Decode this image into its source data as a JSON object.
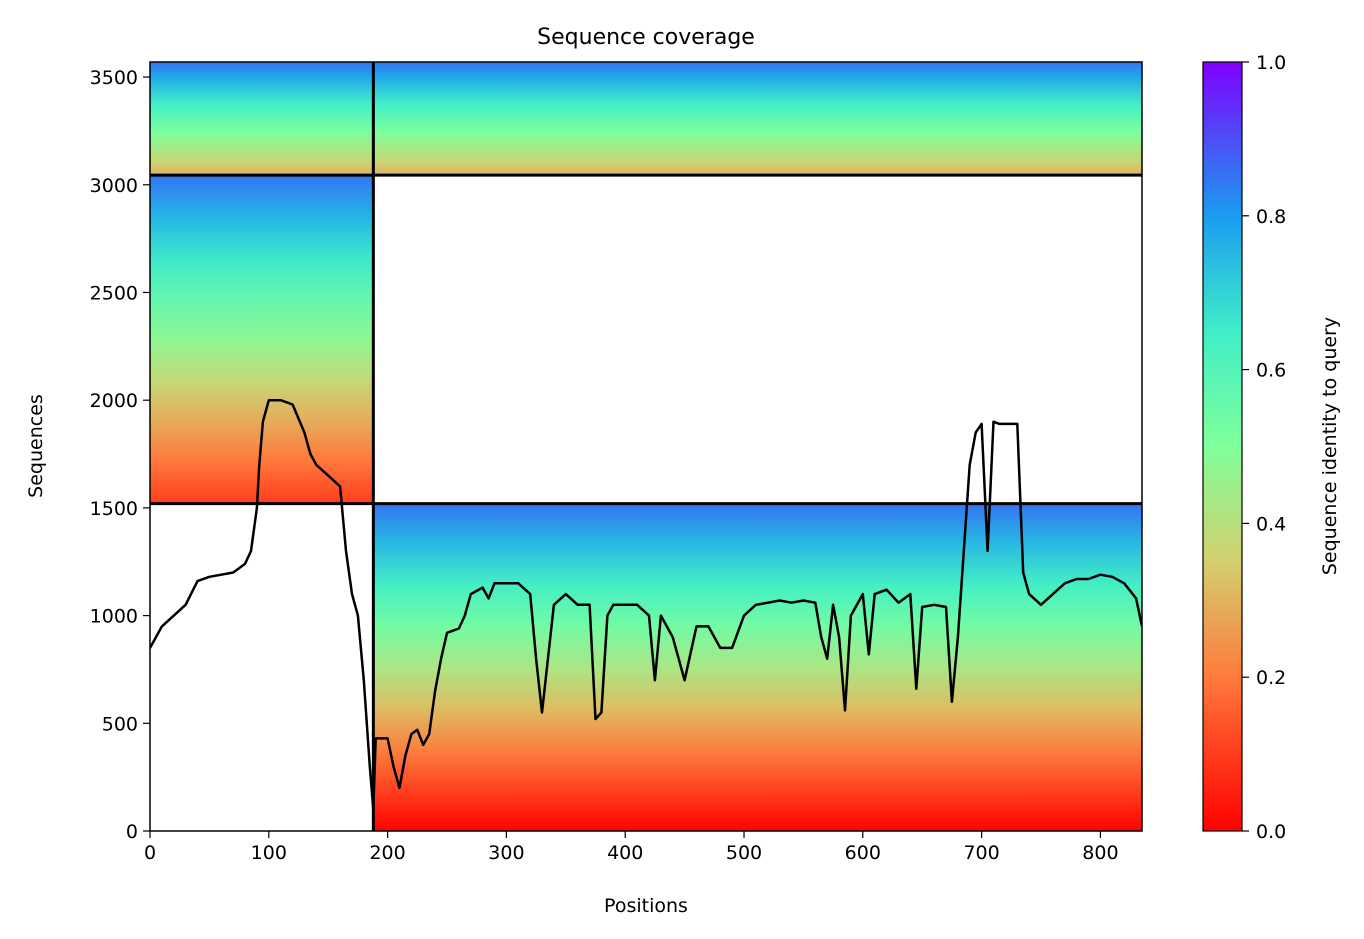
{
  "chart_data": {
    "type": "heatmap",
    "title": "Sequence coverage",
    "xlabel": "Positions",
    "ylabel": "Sequences",
    "xlim": [
      0,
      835
    ],
    "ylim": [
      0,
      3570
    ],
    "xticks": [
      0,
      100,
      200,
      300,
      400,
      500,
      600,
      700,
      800
    ],
    "yticks": [
      0,
      500,
      1000,
      1500,
      2000,
      2500,
      3000,
      3500
    ],
    "colorbar": {
      "label": "Sequence identity to query",
      "range": [
        0,
        1
      ],
      "ticks": [
        "0.0",
        "0.2",
        "0.4",
        "0.6",
        "0.8",
        "1.0"
      ],
      "colormap": "rainbow"
    },
    "block_boundaries": {
      "x": [
        188
      ],
      "y": [
        1520,
        3045
      ]
    },
    "coverage_blocks": [
      {
        "x_range": [
          0,
          188
        ],
        "y_range": [
          3045,
          3570
        ],
        "identity_range": [
          0.3,
          0.85
        ]
      },
      {
        "x_range": [
          188,
          835
        ],
        "y_range": [
          3045,
          3570
        ],
        "identity_range": [
          0.3,
          0.85
        ]
      },
      {
        "x_range": [
          0,
          188
        ],
        "y_range": [
          1520,
          3045
        ],
        "identity_range": [
          0.1,
          0.85
        ]
      },
      {
        "x_range": [
          188,
          835
        ],
        "y_range": [
          0,
          1520
        ],
        "identity_range": [
          0.0,
          0.85
        ]
      }
    ],
    "coverage_line": {
      "x": [
        0,
        10,
        20,
        30,
        40,
        50,
        60,
        70,
        80,
        85,
        90,
        92,
        95,
        100,
        110,
        120,
        130,
        135,
        140,
        150,
        160,
        165,
        170,
        175,
        180,
        185,
        188,
        190,
        200,
        205,
        210,
        215,
        220,
        225,
        230,
        235,
        240,
        245,
        250,
        255,
        260,
        265,
        270,
        280,
        285,
        290,
        300,
        310,
        320,
        325,
        330,
        340,
        350,
        360,
        370,
        375,
        380,
        385,
        390,
        400,
        410,
        420,
        425,
        430,
        440,
        450,
        460,
        470,
        480,
        490,
        500,
        510,
        520,
        530,
        540,
        550,
        560,
        565,
        570,
        575,
        580,
        585,
        590,
        600,
        605,
        610,
        620,
        630,
        640,
        645,
        650,
        660,
        670,
        675,
        680,
        690,
        695,
        700,
        705,
        710,
        715,
        720,
        730,
        735,
        740,
        750,
        760,
        770,
        780,
        790,
        800,
        810,
        820,
        830,
        835
      ],
      "y": [
        850,
        950,
        1000,
        1050,
        1160,
        1180,
        1190,
        1200,
        1240,
        1300,
        1500,
        1700,
        1900,
        2000,
        2000,
        1980,
        1850,
        1750,
        1700,
        1650,
        1600,
        1300,
        1100,
        1000,
        700,
        300,
        100,
        430,
        430,
        300,
        200,
        350,
        450,
        470,
        400,
        450,
        650,
        800,
        920,
        930,
        940,
        1000,
        1100,
        1130,
        1080,
        1150,
        1150,
        1150,
        1100,
        800,
        550,
        1050,
        1100,
        1050,
        1050,
        520,
        550,
        1000,
        1050,
        1050,
        1050,
        1000,
        700,
        1000,
        900,
        700,
        950,
        950,
        850,
        850,
        1000,
        1050,
        1060,
        1070,
        1060,
        1070,
        1060,
        900,
        800,
        1050,
        900,
        560,
        1000,
        1100,
        820,
        1100,
        1120,
        1060,
        1100,
        660,
        1040,
        1050,
        1040,
        600,
        900,
        1700,
        1850,
        1890,
        1300,
        1900,
        1890,
        1890,
        1890,
        1200,
        1100,
        1050,
        1100,
        1150,
        1170,
        1170,
        1190,
        1180,
        1150,
        1080,
        950
      ]
    }
  }
}
